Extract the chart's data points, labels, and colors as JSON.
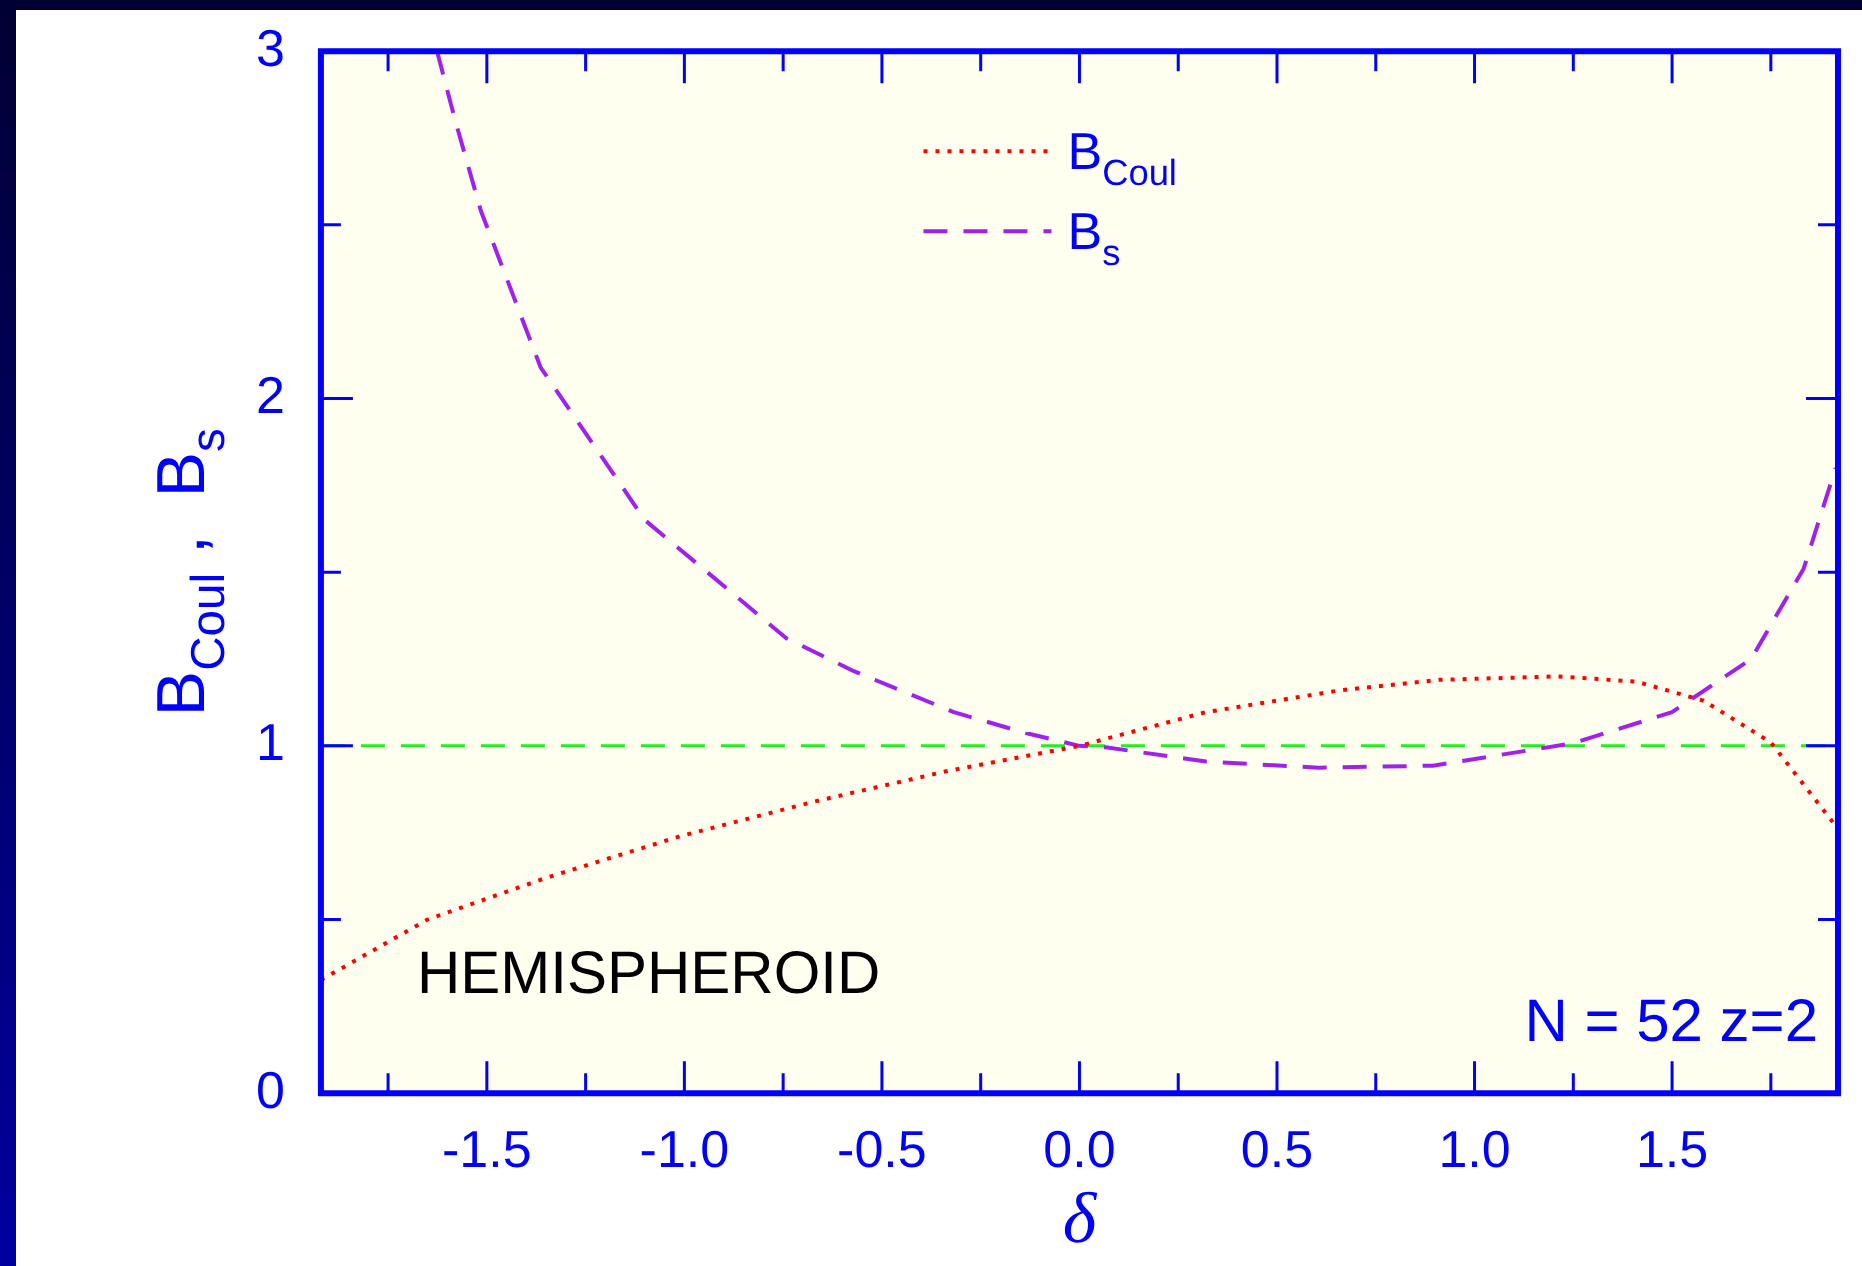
{
  "chart_data": {
    "type": "line",
    "xlabel": "δ",
    "ylabel": "B$_{Coul}$ ,  B$_{s}$",
    "xlim": [
      -1.92,
      1.92
    ],
    "ylim": [
      0,
      3
    ],
    "xticks": [
      {
        "value": -1.75,
        "label": null
      },
      {
        "value": -1.5,
        "label": "-1.5"
      },
      {
        "value": -1.25,
        "label": null
      },
      {
        "value": -1,
        "label": "-1.0"
      },
      {
        "value": -0.75,
        "label": null
      },
      {
        "value": -0.5,
        "label": "-0.5"
      },
      {
        "value": -0.25,
        "label": null
      },
      {
        "value": 0,
        "label": "0.0"
      },
      {
        "value": 0.25,
        "label": null
      },
      {
        "value": 0.5,
        "label": "0.5"
      },
      {
        "value": 0.75,
        "label": null
      },
      {
        "value": 1,
        "label": "1.0"
      },
      {
        "value": 1.25,
        "label": null
      },
      {
        "value": 1.5,
        "label": "1.5"
      },
      {
        "value": 1.75,
        "label": null
      }
    ],
    "yticks": [
      0,
      {
        "value": 0.5,
        "label": null
      },
      1,
      {
        "value": 1.5,
        "label": null
      },
      2,
      {
        "value": 2.5,
        "label": null
      },
      3
    ],
    "grid": false,
    "legend": "top",
    "marker": "none",
    "series": [
      {
        "name": "B$_{Coul}$",
        "color": "#ff0000",
        "line_style": "dotted",
        "x": [
          -1.92,
          -1.65,
          -1.35,
          -1.01,
          -0.67,
          -0.34,
          0,
          0.32,
          0.66,
          0.91,
          1.21,
          1.41,
          1.58,
          1.75,
          1.914
        ],
        "values": [
          0.326,
          0.5,
          0.62,
          0.74,
          0.84,
          0.926,
          1.0,
          1.097,
          1.16,
          1.19,
          1.2,
          1.185,
          1.13,
          1.01,
          0.77
        ]
      },
      {
        "name": "B$_{s}$",
        "color": "#a020f0",
        "line_style": "dashed",
        "x": [
          -1.626,
          -1.58,
          -1.515,
          -1.364,
          -1.1,
          -0.742,
          -0.571,
          -0.318,
          -0.136,
          0,
          0.066,
          0.32,
          0.606,
          0.894,
          1.247,
          1.5,
          1.7,
          1.833,
          1.914
        ],
        "values": [
          3,
          2.8,
          2.54,
          2.09,
          1.65,
          1.31,
          1.215,
          1.097,
          1.037,
          1.0,
          0.996,
          0.955,
          0.937,
          0.943,
          1.007,
          1.097,
          1.25,
          1.51,
          1.8
        ]
      }
    ],
    "ref_lines": [
      {
        "axis": "y",
        "value": 1,
        "color": "#22ee22",
        "line_style": "dashed"
      }
    ],
    "annotations": [
      "HEMISPHEROID",
      "N = 52 z=2"
    ]
  }
}
